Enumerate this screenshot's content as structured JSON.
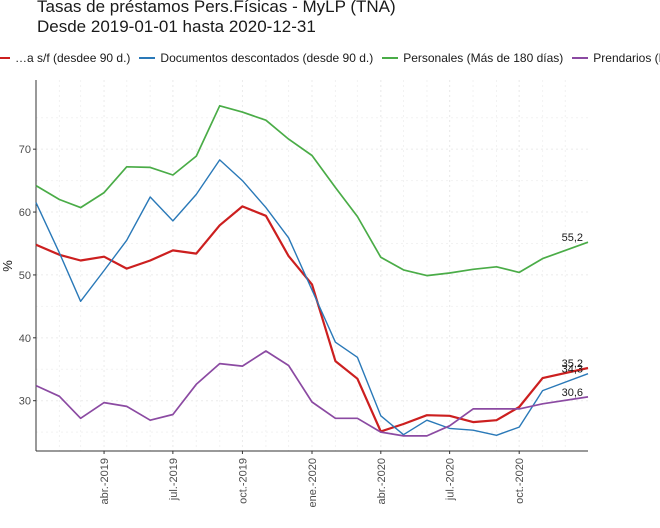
{
  "chart_data": {
    "type": "line",
    "title": "Tasas de préstamos Pers.Físicas - MyLP (TNA)",
    "subtitle": "Desde 2019-01-01 hasta 2020-12-31",
    "xlabel": "",
    "ylabel": "%",
    "x": [
      "2019-01",
      "2019-02",
      "2019-03",
      "2019-04",
      "2019-05",
      "2019-06",
      "2019-07",
      "2019-08",
      "2019-09",
      "2019-10",
      "2019-11",
      "2019-12",
      "2020-01",
      "2020-02",
      "2020-03",
      "2020-04",
      "2020-05",
      "2020-06",
      "2020-07",
      "2020-08",
      "2020-09",
      "2020-10",
      "2020-11",
      "2020-12"
    ],
    "xlim": [
      "2019-01-01",
      "2020-12-31"
    ],
    "x_ticks": [
      "2019-04-01",
      "2019-07-01",
      "2019-10-01",
      "2020-01-01",
      "2020-04-01",
      "2020-07-01",
      "2020-10-01"
    ],
    "x_tick_labels": [
      "abr.-2019",
      "jul.-2019",
      "oct.-2019",
      "ene.-2020",
      "abr.-2020",
      "jul.-2020",
      "oct.-2020"
    ],
    "y_ticks": [
      30,
      40,
      50,
      60,
      70
    ],
    "ylim": [
      22,
      81
    ],
    "grid": true,
    "legend_position": "top",
    "series": [
      {
        "name": "…a s/f (desdee 90 d.)",
        "color": "#cc1f1f",
        "values": [
          54.8,
          53.2,
          52.3,
          52.9,
          51.0,
          52.3,
          53.9,
          53.4,
          57.9,
          60.9,
          59.4,
          53.0,
          48.5,
          36.3,
          33.5,
          25.1,
          26.3,
          27.7,
          27.6,
          26.6,
          26.9,
          29.0,
          33.6,
          35.2
        ]
      },
      {
        "name": "Documentos descontados (desde 90 d.)",
        "color": "#2a79b8",
        "values": [
          61.5,
          53.5,
          45.8,
          50.7,
          55.5,
          62.4,
          58.6,
          62.8,
          68.3,
          65.0,
          60.7,
          55.9,
          47.6,
          39.3,
          36.9,
          27.6,
          24.6,
          26.9,
          25.6,
          25.3,
          24.5,
          25.8,
          31.6,
          34.3
        ]
      },
      {
        "name": "Personales (Más de 180 días)",
        "color": "#4aac47",
        "values": [
          64.2,
          62.0,
          60.7,
          63.1,
          67.2,
          67.1,
          65.9,
          68.9,
          76.9,
          75.9,
          74.6,
          71.6,
          69.0,
          63.9,
          59.3,
          52.8,
          50.8,
          49.9,
          50.3,
          50.9,
          51.3,
          50.4,
          52.6,
          55.2
        ]
      },
      {
        "name": "Prendarios (M…",
        "color": "#8b4aa2",
        "values": [
          32.4,
          30.7,
          27.2,
          29.7,
          29.1,
          26.9,
          27.8,
          32.6,
          35.9,
          35.5,
          37.9,
          35.6,
          29.8,
          27.2,
          27.2,
          25.0,
          24.4,
          24.4,
          26.0,
          28.7,
          28.7,
          28.7,
          29.5,
          30.6
        ]
      }
    ],
    "end_labels": [
      "35,2",
      "34,3",
      "55,2",
      "30,6"
    ]
  }
}
